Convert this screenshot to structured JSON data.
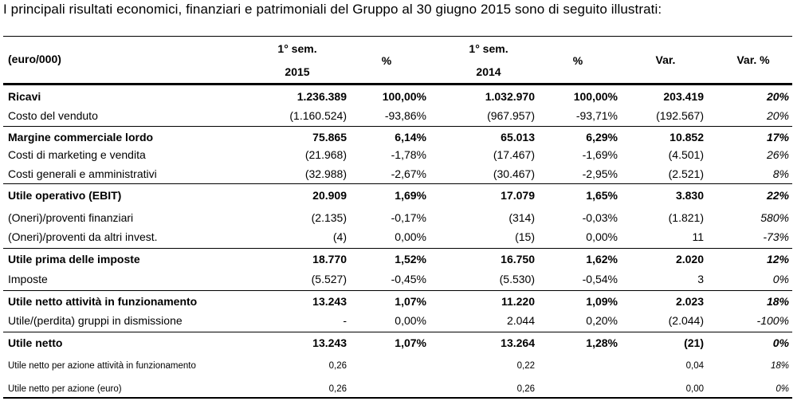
{
  "intro": "I principali risultati economici, finanziari e patrimoniali del Gruppo al 30 giugno 2015 sono di seguito illustrati:",
  "header": {
    "unit": "(euro/000)",
    "sem_label": "1° sem.",
    "year_2015": "2015",
    "year_2014": "2014",
    "pct": "%",
    "var": "Var.",
    "var_pct": "Var. %"
  },
  "rows": [
    {
      "label": "Ricavi",
      "v2015": "1.236.389",
      "p2015": "100,00%",
      "v2014": "1.032.970",
      "p2014": "100,00%",
      "var": "203.419",
      "varp": "20%",
      "bold": true
    },
    {
      "label": "Costo del venduto",
      "v2015": "(1.160.524)",
      "p2015": "-93,86%",
      "v2014": "(967.957)",
      "p2014": "-93,71%",
      "var": "(192.567)",
      "varp": "20%"
    },
    {
      "label": "Margine commerciale lordo",
      "v2015": "75.865",
      "p2015": "6,14%",
      "v2014": "65.013",
      "p2014": "6,29%",
      "var": "10.852",
      "varp": "17%",
      "bold": true
    },
    {
      "label": "Costi di marketing e vendita",
      "v2015": "(21.968)",
      "p2015": "-1,78%",
      "v2014": "(17.467)",
      "p2014": "-1,69%",
      "var": "(4.501)",
      "varp": "26%"
    },
    {
      "label": "Costi generali e amministrativi",
      "v2015": "(32.988)",
      "p2015": "-2,67%",
      "v2014": "(30.467)",
      "p2014": "-2,95%",
      "var": "(2.521)",
      "varp": "8%"
    },
    {
      "label": "Utile operativo (EBIT)",
      "v2015": "20.909",
      "p2015": "1,69%",
      "v2014": "17.079",
      "p2014": "1,65%",
      "var": "3.830",
      "varp": "22%",
      "bold": true
    },
    {
      "label": "(Oneri)/proventi finanziari",
      "v2015": "(2.135)",
      "p2015": "-0,17%",
      "v2014": "(314)",
      "p2014": "-0,03%",
      "var": "(1.821)",
      "varp": "580%"
    },
    {
      "label": "(Oneri)/proventi da altri invest.",
      "v2015": "(4)",
      "p2015": "0,00%",
      "v2014": "(15)",
      "p2014": "0,00%",
      "var": "11",
      "varp": "-73%"
    },
    {
      "label": "Utile prima delle imposte",
      "v2015": "18.770",
      "p2015": "1,52%",
      "v2014": "16.750",
      "p2014": "1,62%",
      "var": "2.020",
      "varp": "12%",
      "bold": true
    },
    {
      "label": "Imposte",
      "v2015": "(5.527)",
      "p2015": "-0,45%",
      "v2014": "(5.530)",
      "p2014": "-0,54%",
      "var": "3",
      "varp": "0%"
    },
    {
      "label": "Utile netto attività in funzionamento",
      "v2015": "13.243",
      "p2015": "1,07%",
      "v2014": "11.220",
      "p2014": "1,09%",
      "var": "2.023",
      "varp": "18%",
      "bold": true
    },
    {
      "label": "Utile/(perdita) gruppi in dismissione",
      "v2015": "-",
      "p2015": "0,00%",
      "v2014": "2.044",
      "p2014": "0,20%",
      "var": "(2.044)",
      "varp": "-100%"
    },
    {
      "label": "Utile netto",
      "v2015": "13.243",
      "p2015": "1,07%",
      "v2014": "13.264",
      "p2014": "1,28%",
      "var": "(21)",
      "varp": "0%",
      "bold": true
    },
    {
      "label": "Utile netto per azione attività in funzionamento",
      "v2015": "0,26",
      "p2015": "",
      "v2014": "0,22",
      "p2014": "",
      "var": "0,04",
      "varp": "18%",
      "small": true
    },
    {
      "label": "Utile netto per azione (euro)",
      "v2015": "0,26",
      "p2015": "",
      "v2014": "0,26",
      "p2014": "",
      "var": "0,00",
      "varp": "0%",
      "small": true
    }
  ]
}
